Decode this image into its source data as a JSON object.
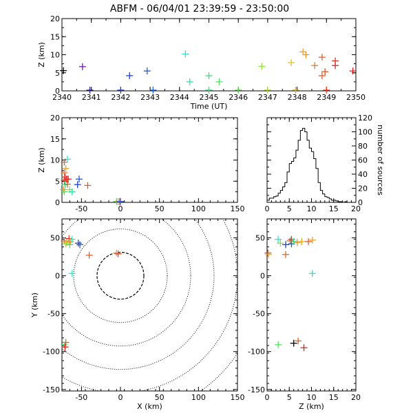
{
  "title": "ABFM - 06/04/01 23:39:59 - 23:50:00",
  "chart_data": [
    {
      "id": "time_height",
      "type": "scatter",
      "xlabel": "Time (UT)",
      "ylabel": "Z (km)",
      "xlim": [
        2340,
        2350
      ],
      "ylim": [
        0,
        20
      ],
      "xticks": [
        "2340",
        "2341",
        "2342",
        "2343",
        "2344",
        "2345",
        "2346",
        "2347",
        "2348",
        "2349",
        "2350"
      ],
      "yticks": [
        "0",
        "5",
        "10",
        "15",
        "20"
      ],
      "points": [
        {
          "x": 2340.05,
          "y": 5.6,
          "color": "#000000"
        },
        {
          "x": 2340.7,
          "y": 6.7,
          "color": "#6a1fb5"
        },
        {
          "x": 2340.95,
          "y": 0.2,
          "color": "#2a2a9a"
        },
        {
          "x": 2342.0,
          "y": 0.2,
          "color": "#1e3fbf"
        },
        {
          "x": 2342.3,
          "y": 4.2,
          "color": "#1f3fd0"
        },
        {
          "x": 2342.9,
          "y": 5.5,
          "color": "#2255cc"
        },
        {
          "x": 2343.1,
          "y": 0.2,
          "color": "#2266dd"
        },
        {
          "x": 2344.2,
          "y": 10.2,
          "color": "#33e0c8"
        },
        {
          "x": 2344.35,
          "y": 2.5,
          "color": "#33e0a0"
        },
        {
          "x": 2345.0,
          "y": 4.2,
          "color": "#3ddc80"
        },
        {
          "x": 2345.0,
          "y": 0.2,
          "color": "#3fdc70"
        },
        {
          "x": 2345.35,
          "y": 2.5,
          "color": "#55e060"
        },
        {
          "x": 2346.0,
          "y": 0.2,
          "color": "#5ed050"
        },
        {
          "x": 2346.8,
          "y": 6.8,
          "color": "#8fe040"
        },
        {
          "x": 2347.0,
          "y": 0.2,
          "color": "#a8d830"
        },
        {
          "x": 2347.8,
          "y": 7.8,
          "color": "#e8c020"
        },
        {
          "x": 2347.95,
          "y": 0.2,
          "color": "#e8a820"
        },
        {
          "x": 2348.2,
          "y": 10.8,
          "color": "#f0a020"
        },
        {
          "x": 2348.3,
          "y": 10.0,
          "color": "#f09020"
        },
        {
          "x": 2348.6,
          "y": 7.0,
          "color": "#e87a20"
        },
        {
          "x": 2348.85,
          "y": 9.3,
          "color": "#e86020"
        },
        {
          "x": 2348.85,
          "y": 4.2,
          "color": "#e85a20"
        },
        {
          "x": 2348.95,
          "y": 5.3,
          "color": "#e85020"
        },
        {
          "x": 2349.0,
          "y": 0.2,
          "color": "#e84020"
        },
        {
          "x": 2349.3,
          "y": 8.3,
          "color": "#e83020"
        },
        {
          "x": 2349.3,
          "y": 7.0,
          "color": "#e02020"
        },
        {
          "x": 2349.9,
          "y": 5.5,
          "color": "#e01818"
        }
      ]
    },
    {
      "id": "x_height",
      "type": "scatter",
      "xlabel": "",
      "ylabel": "Z (km)",
      "xlim": [
        -75,
        150
      ],
      "ylim": [
        0,
        20
      ],
      "xticks": [
        "-50",
        "0",
        "50",
        "100",
        "150"
      ],
      "xtick_values": [
        -50,
        0,
        50,
        100,
        150
      ],
      "yticks": [
        "0",
        "5",
        "10",
        "15",
        "20"
      ],
      "points": [
        {
          "x": -72,
          "y": 9.5,
          "color": "#e86020"
        },
        {
          "x": -70,
          "y": 8.0,
          "color": "#e8a820"
        },
        {
          "x": -72,
          "y": 7.0,
          "color": "#e87a20"
        },
        {
          "x": -68,
          "y": 10.2,
          "color": "#33e0c8"
        },
        {
          "x": -71,
          "y": 6.0,
          "color": "#e83020"
        },
        {
          "x": -69,
          "y": 5.5,
          "color": "#e01818"
        },
        {
          "x": -72,
          "y": 5.2,
          "color": "#e85020"
        },
        {
          "x": -67,
          "y": 5.5,
          "color": "#e02020"
        },
        {
          "x": -71,
          "y": 4.2,
          "color": "#3ddc80"
        },
        {
          "x": -68,
          "y": 4.3,
          "color": "#e85a20"
        },
        {
          "x": -73,
          "y": 3.0,
          "color": "#f09020"
        },
        {
          "x": -72,
          "y": 2.5,
          "color": "#55e060"
        },
        {
          "x": -65,
          "y": 3.0,
          "color": "#8fe040"
        },
        {
          "x": -62,
          "y": 2.5,
          "color": "#33e0a0"
        },
        {
          "x": -53,
          "y": 5.5,
          "color": "#2255cc"
        },
        {
          "x": -55,
          "y": 4.2,
          "color": "#1f3fd0"
        },
        {
          "x": -42,
          "y": 4.0,
          "color": "#e85a20"
        },
        {
          "x": -5,
          "y": 0.2,
          "color": "#3fdc70"
        },
        {
          "x": -3,
          "y": 0.2,
          "color": "#e8a820"
        },
        {
          "x": -1,
          "y": 0.2,
          "color": "#e84020"
        },
        {
          "x": 0,
          "y": 0.2,
          "color": "#2266dd"
        }
      ]
    },
    {
      "id": "height_histogram",
      "type": "histogram",
      "xlabel": "",
      "ylabel": "number of sources",
      "xlim": [
        0,
        20
      ],
      "ylim": [
        0,
        120
      ],
      "xticks": [
        "0",
        "5",
        "10",
        "15",
        "20"
      ],
      "xtick_values": [
        0,
        5,
        10,
        15,
        20
      ],
      "yticks": [
        "0",
        "20",
        "40",
        "60",
        "80",
        "100",
        "120"
      ],
      "ytick_values": [
        0,
        20,
        40,
        60,
        80,
        100,
        120
      ],
      "bin_width": 0.5,
      "bin_start": 0,
      "values": [
        3,
        6,
        6,
        8,
        9,
        13,
        17,
        22,
        28,
        43,
        55,
        58,
        63,
        74,
        88,
        102,
        105,
        100,
        88,
        77,
        72,
        62,
        48,
        28,
        17,
        12,
        8,
        7,
        5,
        3,
        3,
        2,
        1,
        1,
        0,
        1,
        0,
        0,
        0,
        0
      ]
    },
    {
      "id": "plan_view",
      "type": "scatter",
      "xlabel": "X (km)",
      "ylabel": "Y (km)",
      "xlim": [
        -75,
        150
      ],
      "ylim": [
        -152,
        75
      ],
      "xticks": [
        "-50",
        "0",
        "50",
        "100",
        "150"
      ],
      "xtick_values": [
        -50,
        0,
        50,
        100,
        150
      ],
      "yticks": [
        "-150",
        "-100",
        "-50",
        "0",
        "50"
      ],
      "ytick_values": [
        -150,
        -100,
        -50,
        0,
        50
      ],
      "range_rings_km": [
        30,
        60,
        90,
        120,
        150,
        180
      ],
      "points": [
        {
          "x": -72,
          "y": 46,
          "color": "#e86020"
        },
        {
          "x": -69,
          "y": 44,
          "color": "#e8a820"
        },
        {
          "x": -66,
          "y": 49,
          "color": "#e83020"
        },
        {
          "x": -70,
          "y": 42,
          "color": "#8fe040"
        },
        {
          "x": -64,
          "y": 45,
          "color": "#f09020"
        },
        {
          "x": -62,
          "y": 48,
          "color": "#33e0c8"
        },
        {
          "x": -65,
          "y": 41,
          "color": "#3ddc80"
        },
        {
          "x": -54,
          "y": 43,
          "color": "#1f3fd0"
        },
        {
          "x": -52,
          "y": 41,
          "color": "#2255cc"
        },
        {
          "x": -40,
          "y": 27,
          "color": "#e86020"
        },
        {
          "x": -62,
          "y": 3,
          "color": "#33e0c8"
        },
        {
          "x": -5,
          "y": 30,
          "color": "#e8a820"
        },
        {
          "x": -3,
          "y": 29,
          "color": "#e84020"
        },
        {
          "x": -70,
          "y": -88,
          "color": "#e85a20"
        },
        {
          "x": -72,
          "y": -91,
          "color": "#55e060"
        },
        {
          "x": -71,
          "y": -94,
          "color": "#e02020"
        }
      ]
    },
    {
      "id": "height_y",
      "type": "scatter",
      "xlabel": "Z (km)",
      "ylabel": "",
      "xlim": [
        0,
        20
      ],
      "ylim": [
        -152,
        75
      ],
      "xticks": [
        "0",
        "5",
        "10",
        "15",
        "20"
      ],
      "xtick_values": [
        0,
        5,
        10,
        15,
        20
      ],
      "yticks": [
        "-150",
        "-100",
        "-50",
        "0",
        "50"
      ],
      "ytick_values": [
        -150,
        -100,
        -50,
        0,
        50
      ],
      "points": [
        {
          "x": 0.2,
          "y": 30,
          "color": "#e84020"
        },
        {
          "x": 0.3,
          "y": 28,
          "color": "#e8a820"
        },
        {
          "x": 2.5,
          "y": 48,
          "color": "#33e0c8"
        },
        {
          "x": 3.0,
          "y": 43,
          "color": "#8fe040"
        },
        {
          "x": 4.2,
          "y": 41,
          "color": "#1f3fd0"
        },
        {
          "x": 5.2,
          "y": 46,
          "color": "#e86020"
        },
        {
          "x": 5.5,
          "y": 48,
          "color": "#e83020"
        },
        {
          "x": 5.5,
          "y": 42,
          "color": "#2255cc"
        },
        {
          "x": 6.0,
          "y": 45,
          "color": "#3ddc80"
        },
        {
          "x": 6.8,
          "y": 44,
          "color": "#f09020"
        },
        {
          "x": 7.8,
          "y": 45,
          "color": "#e8a820"
        },
        {
          "x": 9.3,
          "y": 45,
          "color": "#e85a20"
        },
        {
          "x": 10.2,
          "y": 47,
          "color": "#f0a020"
        },
        {
          "x": 4.2,
          "y": 28,
          "color": "#e86020"
        },
        {
          "x": 10.2,
          "y": 3,
          "color": "#33e0c8"
        },
        {
          "x": 2.5,
          "y": -91,
          "color": "#55e060"
        },
        {
          "x": 6.0,
          "y": -89,
          "color": "#000000"
        },
        {
          "x": 7.0,
          "y": -86,
          "color": "#e85a20"
        },
        {
          "x": 8.3,
          "y": -95,
          "color": "#e02020"
        }
      ]
    }
  ]
}
